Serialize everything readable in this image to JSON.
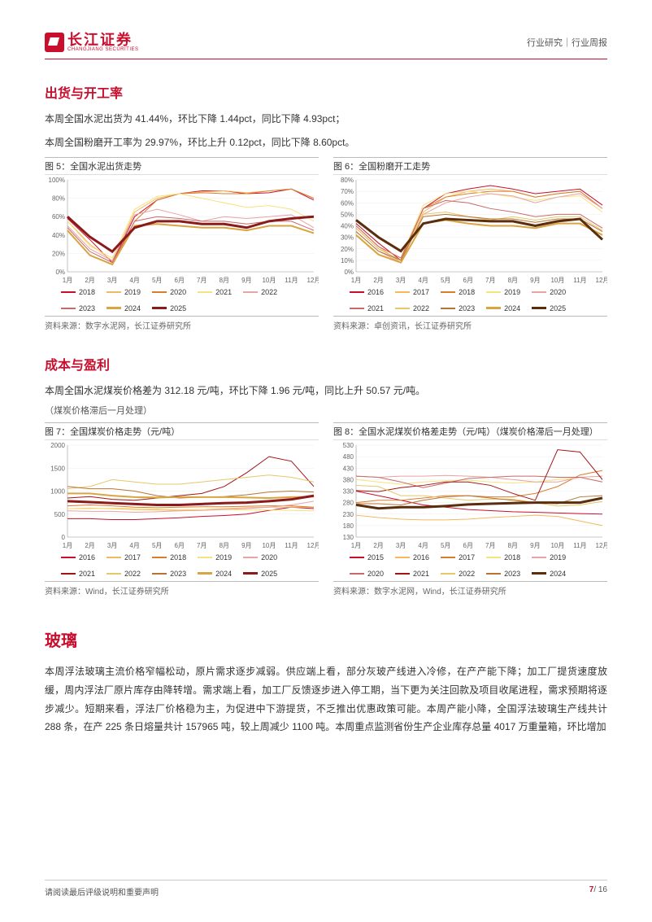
{
  "header": {
    "logo_text": "长江证券",
    "logo_sub": "CHANGJIANG SECURITIES",
    "right": "行业研究｜行业周报"
  },
  "sec1": {
    "title": "出货与开工率",
    "p1": "本周全国水泥出货为 41.44%，环比下降 1.44pct，同比下降 4.93pct；",
    "p2": "本周全国粉磨开工率为 29.97%，环比上升 0.12pct，同比下降 8.60pct。"
  },
  "fig5": {
    "caption": "图 5：全国水泥出货走势",
    "source": "资料来源：数字水泥网，长江证券研究所",
    "type": "line",
    "x_labels": [
      "1月",
      "2月",
      "3月",
      "4月",
      "5月",
      "6月",
      "7月",
      "8月",
      "9月",
      "10月",
      "11月",
      "12月"
    ],
    "ylim": [
      0,
      100
    ],
    "ytick_step": 20,
    "ylabel_suffix": "%",
    "grid_color": "#eeeeee",
    "line_width": 1,
    "series": [
      {
        "name": "2018",
        "color": "#c8102e",
        "weight": 1,
        "data": [
          58,
          35,
          10,
          60,
          78,
          85,
          88,
          88,
          85,
          86,
          90,
          78
        ]
      },
      {
        "name": "2019",
        "color": "#f4b860",
        "weight": 1,
        "data": [
          55,
          30,
          12,
          65,
          80,
          85,
          87,
          88,
          86,
          88,
          90,
          80
        ]
      },
      {
        "name": "2020",
        "color": "#d97d2d",
        "weight": 1,
        "data": [
          45,
          18,
          8,
          55,
          78,
          85,
          86,
          85,
          85,
          88,
          90,
          80
        ]
      },
      {
        "name": "2021",
        "color": "#f6e27f",
        "weight": 1,
        "data": [
          55,
          28,
          15,
          68,
          82,
          85,
          80,
          75,
          70,
          72,
          68,
          55
        ]
      },
      {
        "name": "2022",
        "color": "#e9a3a3",
        "weight": 1,
        "data": [
          50,
          25,
          12,
          62,
          68,
          62,
          55,
          60,
          58,
          60,
          62,
          48
        ]
      },
      {
        "name": "2023",
        "color": "#c76a6a",
        "weight": 1,
        "data": [
          48,
          22,
          10,
          55,
          60,
          58,
          55,
          55,
          52,
          55,
          55,
          45
        ]
      },
      {
        "name": "2024",
        "color": "#d9a441",
        "weight": 2,
        "data": [
          45,
          18,
          8,
          50,
          52,
          50,
          48,
          48,
          45,
          50,
          50,
          42
        ]
      },
      {
        "name": "2025",
        "color": "#8b1a1a",
        "weight": 3,
        "data": [
          60,
          38,
          22,
          48,
          55,
          55,
          52,
          52,
          48,
          55,
          58,
          60
        ]
      }
    ]
  },
  "fig6": {
    "caption": "图 6：全国粉磨开工走势",
    "source": "资料来源：卓创资讯，长江证券研究所",
    "type": "line",
    "x_labels": [
      "1月",
      "2月",
      "3月",
      "4月",
      "5月",
      "6月",
      "7月",
      "8月",
      "9月",
      "10月",
      "11月",
      "12月"
    ],
    "ylim": [
      0,
      80
    ],
    "ytick_step": 10,
    "ylabel_suffix": "%",
    "grid_color": "#eeeeee",
    "line_width": 1,
    "series": [
      {
        "name": "2016",
        "color": "#c8102e",
        "weight": 1,
        "data": [
          42,
          25,
          10,
          55,
          68,
          72,
          75,
          72,
          68,
          70,
          72,
          58
        ]
      },
      {
        "name": "2017",
        "color": "#f4b860",
        "weight": 1,
        "data": [
          40,
          22,
          8,
          52,
          65,
          70,
          72,
          70,
          65,
          68,
          70,
          55
        ]
      },
      {
        "name": "2018",
        "color": "#d97d2d",
        "weight": 1,
        "data": [
          38,
          20,
          10,
          55,
          65,
          68,
          70,
          70,
          65,
          68,
          70,
          55
        ]
      },
      {
        "name": "2019",
        "color": "#f6e27f",
        "weight": 1,
        "data": [
          40,
          22,
          12,
          58,
          68,
          70,
          68,
          65,
          62,
          65,
          66,
          52
        ]
      },
      {
        "name": "2020",
        "color": "#e9a3a3",
        "weight": 1,
        "data": [
          35,
          18,
          8,
          50,
          60,
          65,
          68,
          66,
          60,
          65,
          68,
          55
        ]
      },
      {
        "name": "2021",
        "color": "#c76a6a",
        "weight": 1,
        "data": [
          40,
          22,
          12,
          55,
          62,
          60,
          55,
          52,
          48,
          50,
          50,
          38
        ]
      },
      {
        "name": "2022",
        "color": "#e4c86a",
        "weight": 1,
        "data": [
          38,
          20,
          10,
          50,
          52,
          48,
          45,
          48,
          45,
          48,
          48,
          36
        ]
      },
      {
        "name": "2023",
        "color": "#b87333",
        "weight": 1,
        "data": [
          35,
          18,
          10,
          48,
          50,
          48,
          46,
          46,
          43,
          46,
          46,
          35
        ]
      },
      {
        "name": "2024",
        "color": "#d9a441",
        "weight": 2,
        "data": [
          32,
          15,
          8,
          42,
          45,
          42,
          40,
          40,
          38,
          42,
          42,
          32
        ]
      },
      {
        "name": "2025",
        "color": "#5a2d0c",
        "weight": 3,
        "data": [
          45,
          30,
          18,
          42,
          46,
          45,
          44,
          44,
          40,
          44,
          46,
          28
        ]
      }
    ]
  },
  "sec2": {
    "title": "成本与盈利",
    "p1": "本周全国水泥煤炭价格差为 312.18 元/吨，环比下降 1.96 元/吨，同比上升 50.57 元/吨。",
    "note": "（煤炭价格滞后一月处理）"
  },
  "fig7": {
    "caption": "图 7：全国煤炭价格走势（元/吨）",
    "source": "资料来源：Wind，长江证券研究所",
    "type": "line",
    "x_labels": [
      "1月",
      "2月",
      "3月",
      "4月",
      "5月",
      "6月",
      "7月",
      "8月",
      "9月",
      "10月",
      "11月",
      "12月"
    ],
    "ylim": [
      0,
      2000
    ],
    "ytick_step": 500,
    "ylabel_suffix": "",
    "grid_color": "#eeeeee",
    "line_width": 1,
    "series": [
      {
        "name": "2016",
        "color": "#c8102e",
        "weight": 1,
        "data": [
          400,
          400,
          380,
          380,
          400,
          420,
          450,
          470,
          500,
          580,
          650,
          620
        ]
      },
      {
        "name": "2017",
        "color": "#f4b860",
        "weight": 1,
        "data": [
          620,
          630,
          620,
          600,
          590,
          580,
          600,
          620,
          640,
          650,
          650,
          650
        ]
      },
      {
        "name": "2018",
        "color": "#d97d2d",
        "weight": 1,
        "data": [
          680,
          700,
          680,
          650,
          640,
          650,
          660,
          660,
          670,
          680,
          680,
          650
        ]
      },
      {
        "name": "2019",
        "color": "#f6e27f",
        "weight": 1,
        "data": [
          620,
          620,
          630,
          620,
          610,
          600,
          600,
          600,
          590,
          590,
          580,
          570
        ]
      },
      {
        "name": "2020",
        "color": "#e9a3a3",
        "weight": 1,
        "data": [
          570,
          560,
          560,
          540,
          550,
          570,
          580,
          600,
          620,
          650,
          700,
          780
        ]
      },
      {
        "name": "2021",
        "color": "#a31515",
        "weight": 1,
        "data": [
          850,
          880,
          820,
          800,
          850,
          900,
          950,
          1100,
          1400,
          1750,
          1650,
          1100
        ]
      },
      {
        "name": "2022",
        "color": "#e4c86a",
        "weight": 1,
        "data": [
          1050,
          1100,
          1250,
          1200,
          1150,
          1150,
          1200,
          1250,
          1300,
          1350,
          1300,
          1200
        ]
      },
      {
        "name": "2023",
        "color": "#b87333",
        "weight": 1,
        "data": [
          1100,
          1050,
          1050,
          1000,
          900,
          850,
          870,
          880,
          920,
          980,
          1000,
          980
        ]
      },
      {
        "name": "2024",
        "color": "#d9a441",
        "weight": 2,
        "data": [
          950,
          950,
          900,
          870,
          860,
          870,
          870,
          870,
          860,
          850,
          870,
          880
        ]
      },
      {
        "name": "2025",
        "color": "#8b1a1a",
        "weight": 3,
        "data": [
          780,
          760,
          740,
          720,
          700,
          700,
          720,
          740,
          750,
          780,
          820,
          900
        ]
      }
    ]
  },
  "fig8": {
    "caption": "图 8：全国水泥煤炭价格差走势（元/吨）（煤炭价格滞后一月处理）",
    "source": "资料来源：数字水泥网，Wind，长江证券研究所",
    "type": "line",
    "x_labels": [
      "1月",
      "2月",
      "3月",
      "4月",
      "5月",
      "6月",
      "7月",
      "8月",
      "9月",
      "10月",
      "11月",
      "12月"
    ],
    "ylim": [
      130,
      530
    ],
    "ytick_step": 50,
    "ylabel_suffix": "",
    "grid_color": "#eeeeee",
    "line_width": 1,
    "series": [
      {
        "name": "2015",
        "color": "#c8102e",
        "weight": 1,
        "data": [
          330,
          310,
          290,
          270,
          260,
          250,
          245,
          240,
          238,
          235,
          232,
          230
        ]
      },
      {
        "name": "2016",
        "color": "#f4b860",
        "weight": 1,
        "data": [
          225,
          215,
          208,
          205,
          205,
          208,
          215,
          220,
          225,
          220,
          200,
          180
        ]
      },
      {
        "name": "2017",
        "color": "#d97d2d",
        "weight": 1,
        "data": [
          280,
          290,
          290,
          300,
          310,
          310,
          305,
          305,
          320,
          350,
          400,
          420
        ]
      },
      {
        "name": "2018",
        "color": "#f6e27f",
        "weight": 1,
        "data": [
          380,
          370,
          360,
          370,
          375,
          378,
          370,
          365,
          370,
          380,
          390,
          395
        ]
      },
      {
        "name": "2019",
        "color": "#e9a3a3",
        "weight": 1,
        "data": [
          395,
          390,
          395,
          395,
          398,
          395,
          390,
          380,
          370,
          370,
          390,
          395
        ]
      },
      {
        "name": "2020",
        "color": "#c76a6a",
        "weight": 1,
        "data": [
          395,
          390,
          370,
          345,
          365,
          385,
          390,
          395,
          395,
          390,
          390,
          370
        ]
      },
      {
        "name": "2021",
        "color": "#a31515",
        "weight": 1,
        "data": [
          332,
          328,
          345,
          355,
          370,
          370,
          355,
          320,
          290,
          510,
          500,
          380
        ]
      },
      {
        "name": "2022",
        "color": "#e4c86a",
        "weight": 1,
        "data": [
          355,
          350,
          310,
          310,
          300,
          290,
          295,
          295,
          280,
          265,
          270,
          285
        ]
      },
      {
        "name": "2023",
        "color": "#b87333",
        "weight": 1,
        "data": [
          275,
          275,
          270,
          290,
          305,
          310,
          300,
          290,
          280,
          275,
          305,
          310
        ]
      },
      {
        "name": "2024",
        "color": "#5a2d0c",
        "weight": 3,
        "data": [
          270,
          255,
          260,
          260,
          265,
          272,
          275,
          278,
          280,
          280,
          280,
          300
        ]
      }
    ]
  },
  "sec3": {
    "title": "玻璃",
    "p1": "本周浮法玻璃主流价格窄幅松动，原片需求逐步减弱。供应端上看，部分灰玻产线进入冷修，在产产能下降；加工厂提货速度放缓，周内浮法厂原片库存由降转增。需求端上看，加工厂反馈逐步进入停工期，当下更为关注回款及项目收尾进程，需求预期将逐步减少。短期来看，浮法厂价格稳为主，为促进中下游提货，不乏推出优惠政策可能。本周产能小降，全国浮法玻璃生产线共计 288 条，在产 225 条日熔量共计 157965 吨，较上周减少 1100 吨。本周重点监测省份生产企业库存总量 4017 万重量箱，环比增加"
  },
  "footer": {
    "left": "请阅读最后评级说明和重要声明",
    "page": "7",
    "total": "/ 16"
  }
}
